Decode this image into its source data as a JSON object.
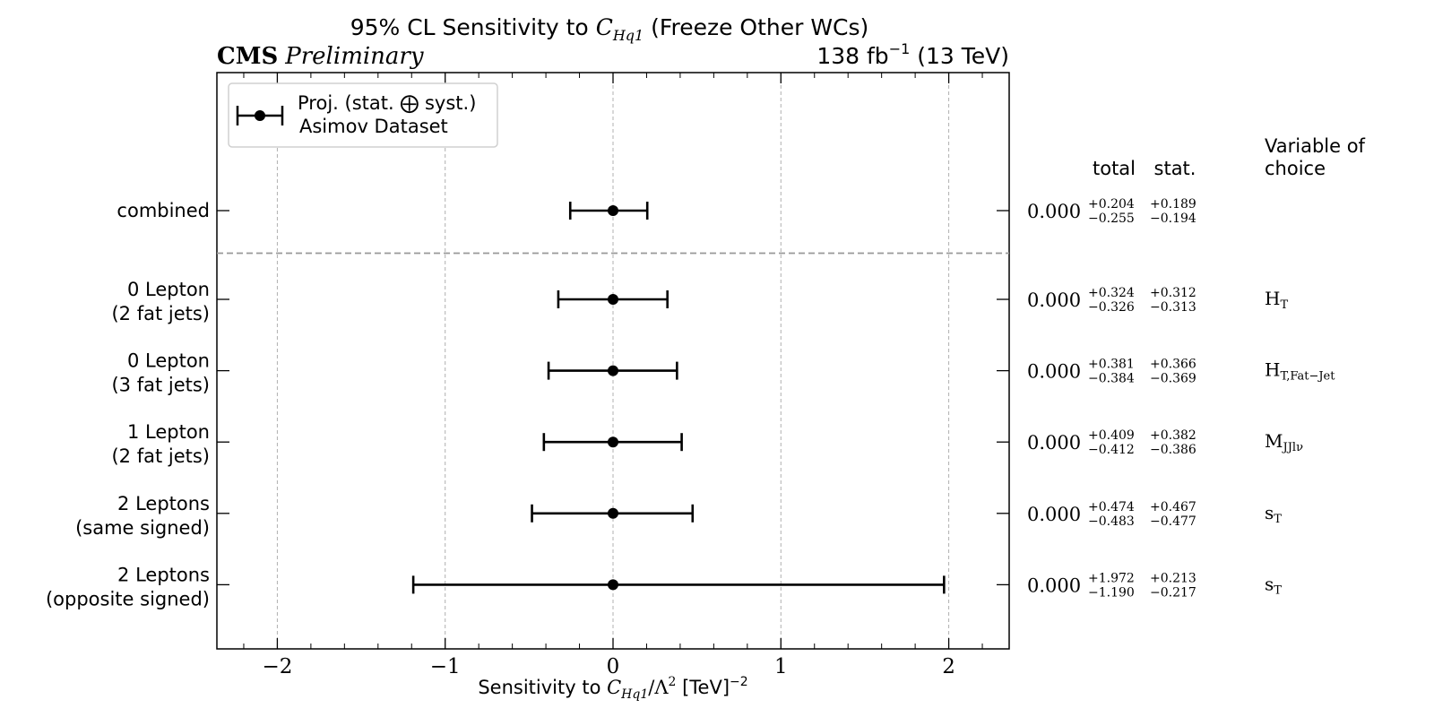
{
  "header": {
    "title_pre": "95% CL Sensitivity to ",
    "title_wc_main": "C",
    "title_wc_sub": "Hq1",
    "title_post": " (Freeze Other WCs)",
    "experiment": "CMS",
    "status": "Preliminary",
    "lumi_pre": "138 fb",
    "lumi_exp": "−1",
    "lumi_post": " (13 TeV)"
  },
  "legend": {
    "line1": "Proj. (stat. ⨁ syst.)",
    "line2": "Asimov Dataset"
  },
  "table_headers": {
    "total": "total",
    "stat": "stat.",
    "variable_line1": "Variable of",
    "variable_line2": "choice"
  },
  "chart_data": {
    "type": "scatter",
    "title": "95% CL Sensitivity to C_Hq1 (Freeze Other WCs)",
    "xlabel": "Sensitivity to C_Hq1/Λ^2 [TeV]^-2",
    "xlim": [
      -2.36,
      2.36
    ],
    "xticks": [
      -2,
      -1,
      0,
      1,
      2
    ],
    "xtick_labels": [
      "−2",
      "−1",
      "0",
      "1",
      "2"
    ],
    "grid": "vertical dashed at major ticks",
    "legend_position": "top-left",
    "separator_after": "combined",
    "categories": [
      {
        "label1": "combined",
        "label2": "",
        "central": "0.000",
        "value": 0.0,
        "total_up": 0.204,
        "total_down": 0.255,
        "stat_up": 0.189,
        "stat_down": 0.194,
        "total_up_txt": "+0.204",
        "total_down_txt": "−0.255",
        "stat_up_txt": "+0.189",
        "stat_down_txt": "−0.194",
        "var_main": "",
        "var_sub": ""
      },
      {
        "label1": "0 Lepton",
        "label2": "(2 fat jets)",
        "central": "0.000",
        "value": 0.0,
        "total_up": 0.324,
        "total_down": 0.326,
        "stat_up": 0.312,
        "stat_down": 0.313,
        "total_up_txt": "+0.324",
        "total_down_txt": "−0.326",
        "stat_up_txt": "+0.312",
        "stat_down_txt": "−0.313",
        "var_main": "H",
        "var_sub": "T"
      },
      {
        "label1": "0 Lepton",
        "label2": "(3 fat jets)",
        "central": "0.000",
        "value": 0.0,
        "total_up": 0.381,
        "total_down": 0.384,
        "stat_up": 0.366,
        "stat_down": 0.369,
        "total_up_txt": "+0.381",
        "total_down_txt": "−0.384",
        "stat_up_txt": "+0.366",
        "stat_down_txt": "−0.369",
        "var_main": "H",
        "var_sub": "T,Fat−Jet"
      },
      {
        "label1": "1 Lepton",
        "label2": "(2 fat jets)",
        "central": "0.000",
        "value": 0.0,
        "total_up": 0.409,
        "total_down": 0.412,
        "stat_up": 0.382,
        "stat_down": 0.386,
        "total_up_txt": "+0.409",
        "total_down_txt": "−0.412",
        "stat_up_txt": "+0.382",
        "stat_down_txt": "−0.386",
        "var_main": "M",
        "var_sub": "JJlν"
      },
      {
        "label1": "2 Leptons",
        "label2": "(same signed)",
        "central": "0.000",
        "value": 0.0,
        "total_up": 0.474,
        "total_down": 0.483,
        "stat_up": 0.467,
        "stat_down": 0.477,
        "total_up_txt": "+0.474",
        "total_down_txt": "−0.483",
        "stat_up_txt": "+0.467",
        "stat_down_txt": "−0.477",
        "var_main": "s",
        "var_sub": "T"
      },
      {
        "label1": "2 Leptons",
        "label2": "(opposite signed)",
        "central": "0.000",
        "value": 0.0,
        "total_up": 1.972,
        "total_down": 1.19,
        "stat_up": 0.213,
        "stat_down": 0.217,
        "total_up_txt": "+1.972",
        "total_down_txt": "−1.190",
        "stat_up_txt": "+0.213",
        "stat_down_txt": "−0.217",
        "var_main": "s",
        "var_sub": "T"
      }
    ]
  }
}
